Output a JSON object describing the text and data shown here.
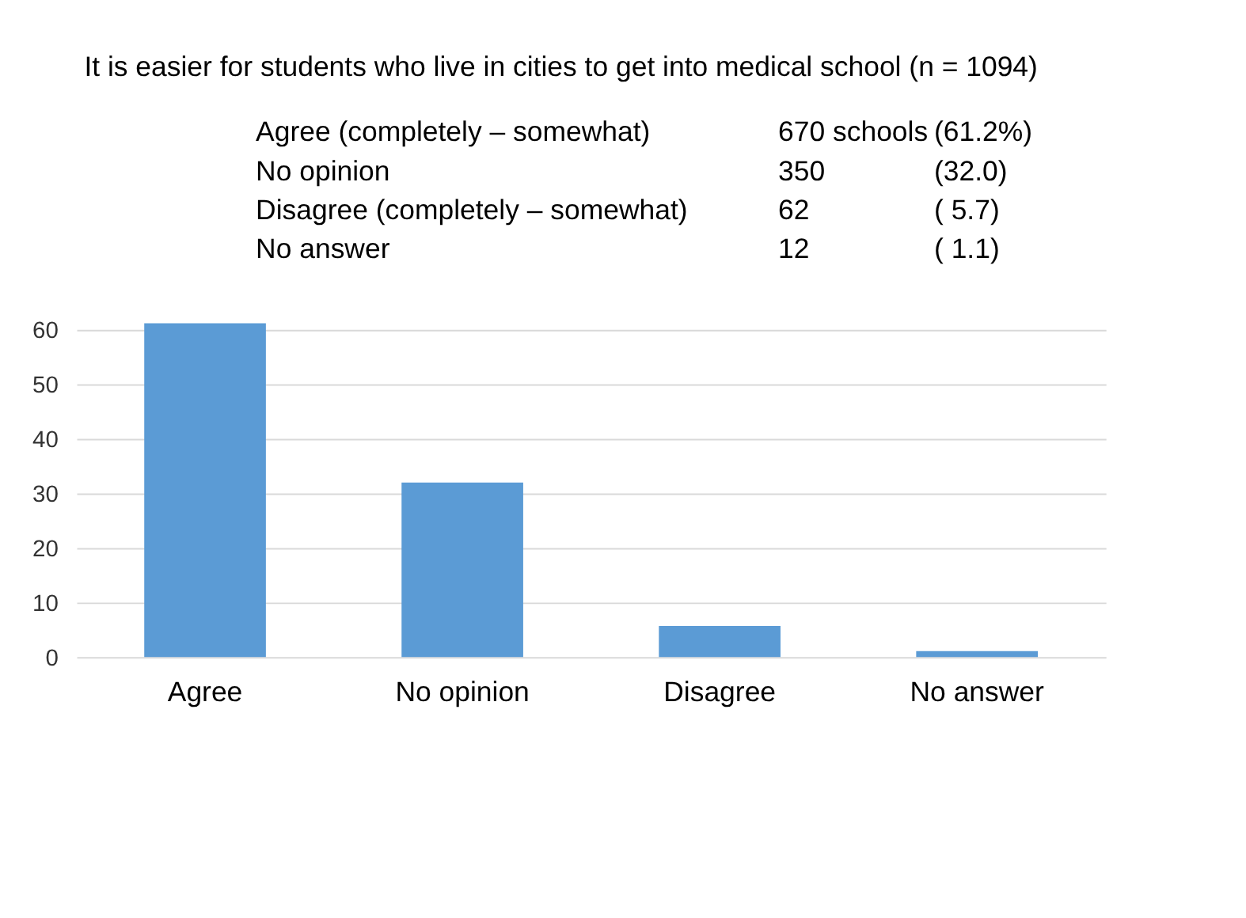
{
  "chart_data": {
    "type": "bar",
    "title": "It is easier for students who live in cities to get into medical school (n = 1094)",
    "annotations": [
      "Agree (completely – somewhat)",
      "670 schools",
      "(61.2%)",
      "No opinion",
      "350",
      "(32.0)",
      "Disagree (completely – somewhat)",
      "62",
      "( 5.7)",
      "No answer",
      "12",
      "( 1.1)"
    ],
    "categories": [
      "Agree",
      "No opinion",
      "Disagree",
      "No answer"
    ],
    "values": [
      61.2,
      32.0,
      5.7,
      1.1
    ],
    "color": "#5b9bd5",
    "ylim": [
      0,
      62
    ],
    "yticks": [
      0,
      10,
      20,
      30,
      40,
      50,
      60
    ],
    "grid": "y"
  }
}
